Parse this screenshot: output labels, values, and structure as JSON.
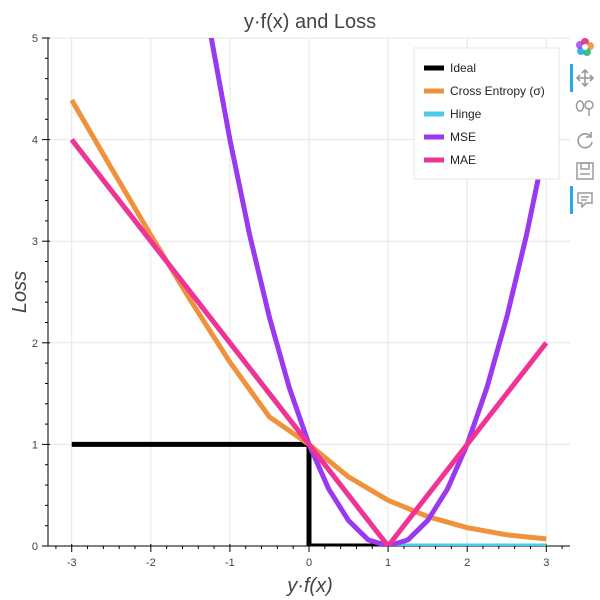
{
  "chart_data": {
    "type": "line",
    "title": "y·f(x) and Loss",
    "xlabel": "y·f(x)",
    "ylabel": "Loss",
    "xlim": [
      -3.3,
      3.3
    ],
    "ylim": [
      0,
      5
    ],
    "x_ticks": [
      -3,
      -2,
      -1,
      0,
      1,
      2,
      3
    ],
    "y_ticks": [
      0,
      1,
      2,
      3,
      4,
      5
    ],
    "x_tick_labels": [
      "-3",
      "-2",
      "-1",
      "0",
      "1",
      "2",
      "3"
    ],
    "y_tick_labels": [
      "0",
      "1",
      "2",
      "3",
      "4",
      "5"
    ],
    "grid": true,
    "legend_position": "top-right",
    "series": [
      {
        "name": "Ideal",
        "color": "#000000",
        "x": [
          -3,
          0,
          0,
          3
        ],
        "y": [
          1,
          1,
          0,
          0
        ]
      },
      {
        "name": "Cross Entropy (σ)",
        "color": "#f0913d",
        "x": [
          -3,
          -2.5,
          -2,
          -1.5,
          -1,
          -0.5,
          0,
          0.5,
          1,
          1.5,
          2,
          2.5,
          3
        ],
        "y": [
          4.39,
          3.72,
          3.06,
          2.42,
          1.81,
          1.27,
          1.0,
          0.68,
          0.45,
          0.29,
          0.18,
          0.11,
          0.07
        ]
      },
      {
        "name": "Hinge",
        "color": "#4ccbe8",
        "x": [
          -3,
          1,
          3
        ],
        "y": [
          4,
          0,
          0
        ]
      },
      {
        "name": "MSE",
        "color": "#9a39f0",
        "x": [
          -1.24,
          -1,
          -0.75,
          -0.5,
          -0.25,
          0,
          0.25,
          0.5,
          0.75,
          1,
          1.25,
          1.5,
          1.75,
          2,
          2.25,
          2.5,
          2.75,
          3
        ],
        "y": [
          5.02,
          4.0,
          3.06,
          2.25,
          1.56,
          1.0,
          0.56,
          0.25,
          0.06,
          0.0,
          0.06,
          0.25,
          0.56,
          1.0,
          1.56,
          2.25,
          3.06,
          4.0
        ]
      },
      {
        "name": "MAE",
        "color": "#f13396",
        "x": [
          -3,
          1,
          3
        ],
        "y": [
          4,
          0,
          2
        ]
      }
    ]
  },
  "toolbar": {
    "tools": [
      "bokeh-logo-icon",
      "pan-icon",
      "wheel-zoom-icon",
      "reset-icon",
      "save-icon",
      "hover-icon"
    ]
  }
}
